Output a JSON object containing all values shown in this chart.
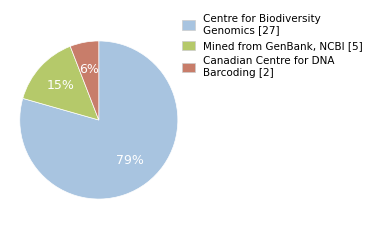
{
  "labels": [
    "Centre for Biodiversity\nGenomics [27]",
    "Mined from GenBank, NCBI [5]",
    "Canadian Centre for DNA\nBarcoding [2]"
  ],
  "values": [
    27,
    5,
    2
  ],
  "colors": [
    "#a8c4e0",
    "#b5c96a",
    "#c87d6a"
  ],
  "startangle": 90,
  "counterclock": false,
  "background_color": "#ffffff",
  "text_color": "#ffffff",
  "pct_fontsize": 9,
  "legend_fontsize": 7.5
}
